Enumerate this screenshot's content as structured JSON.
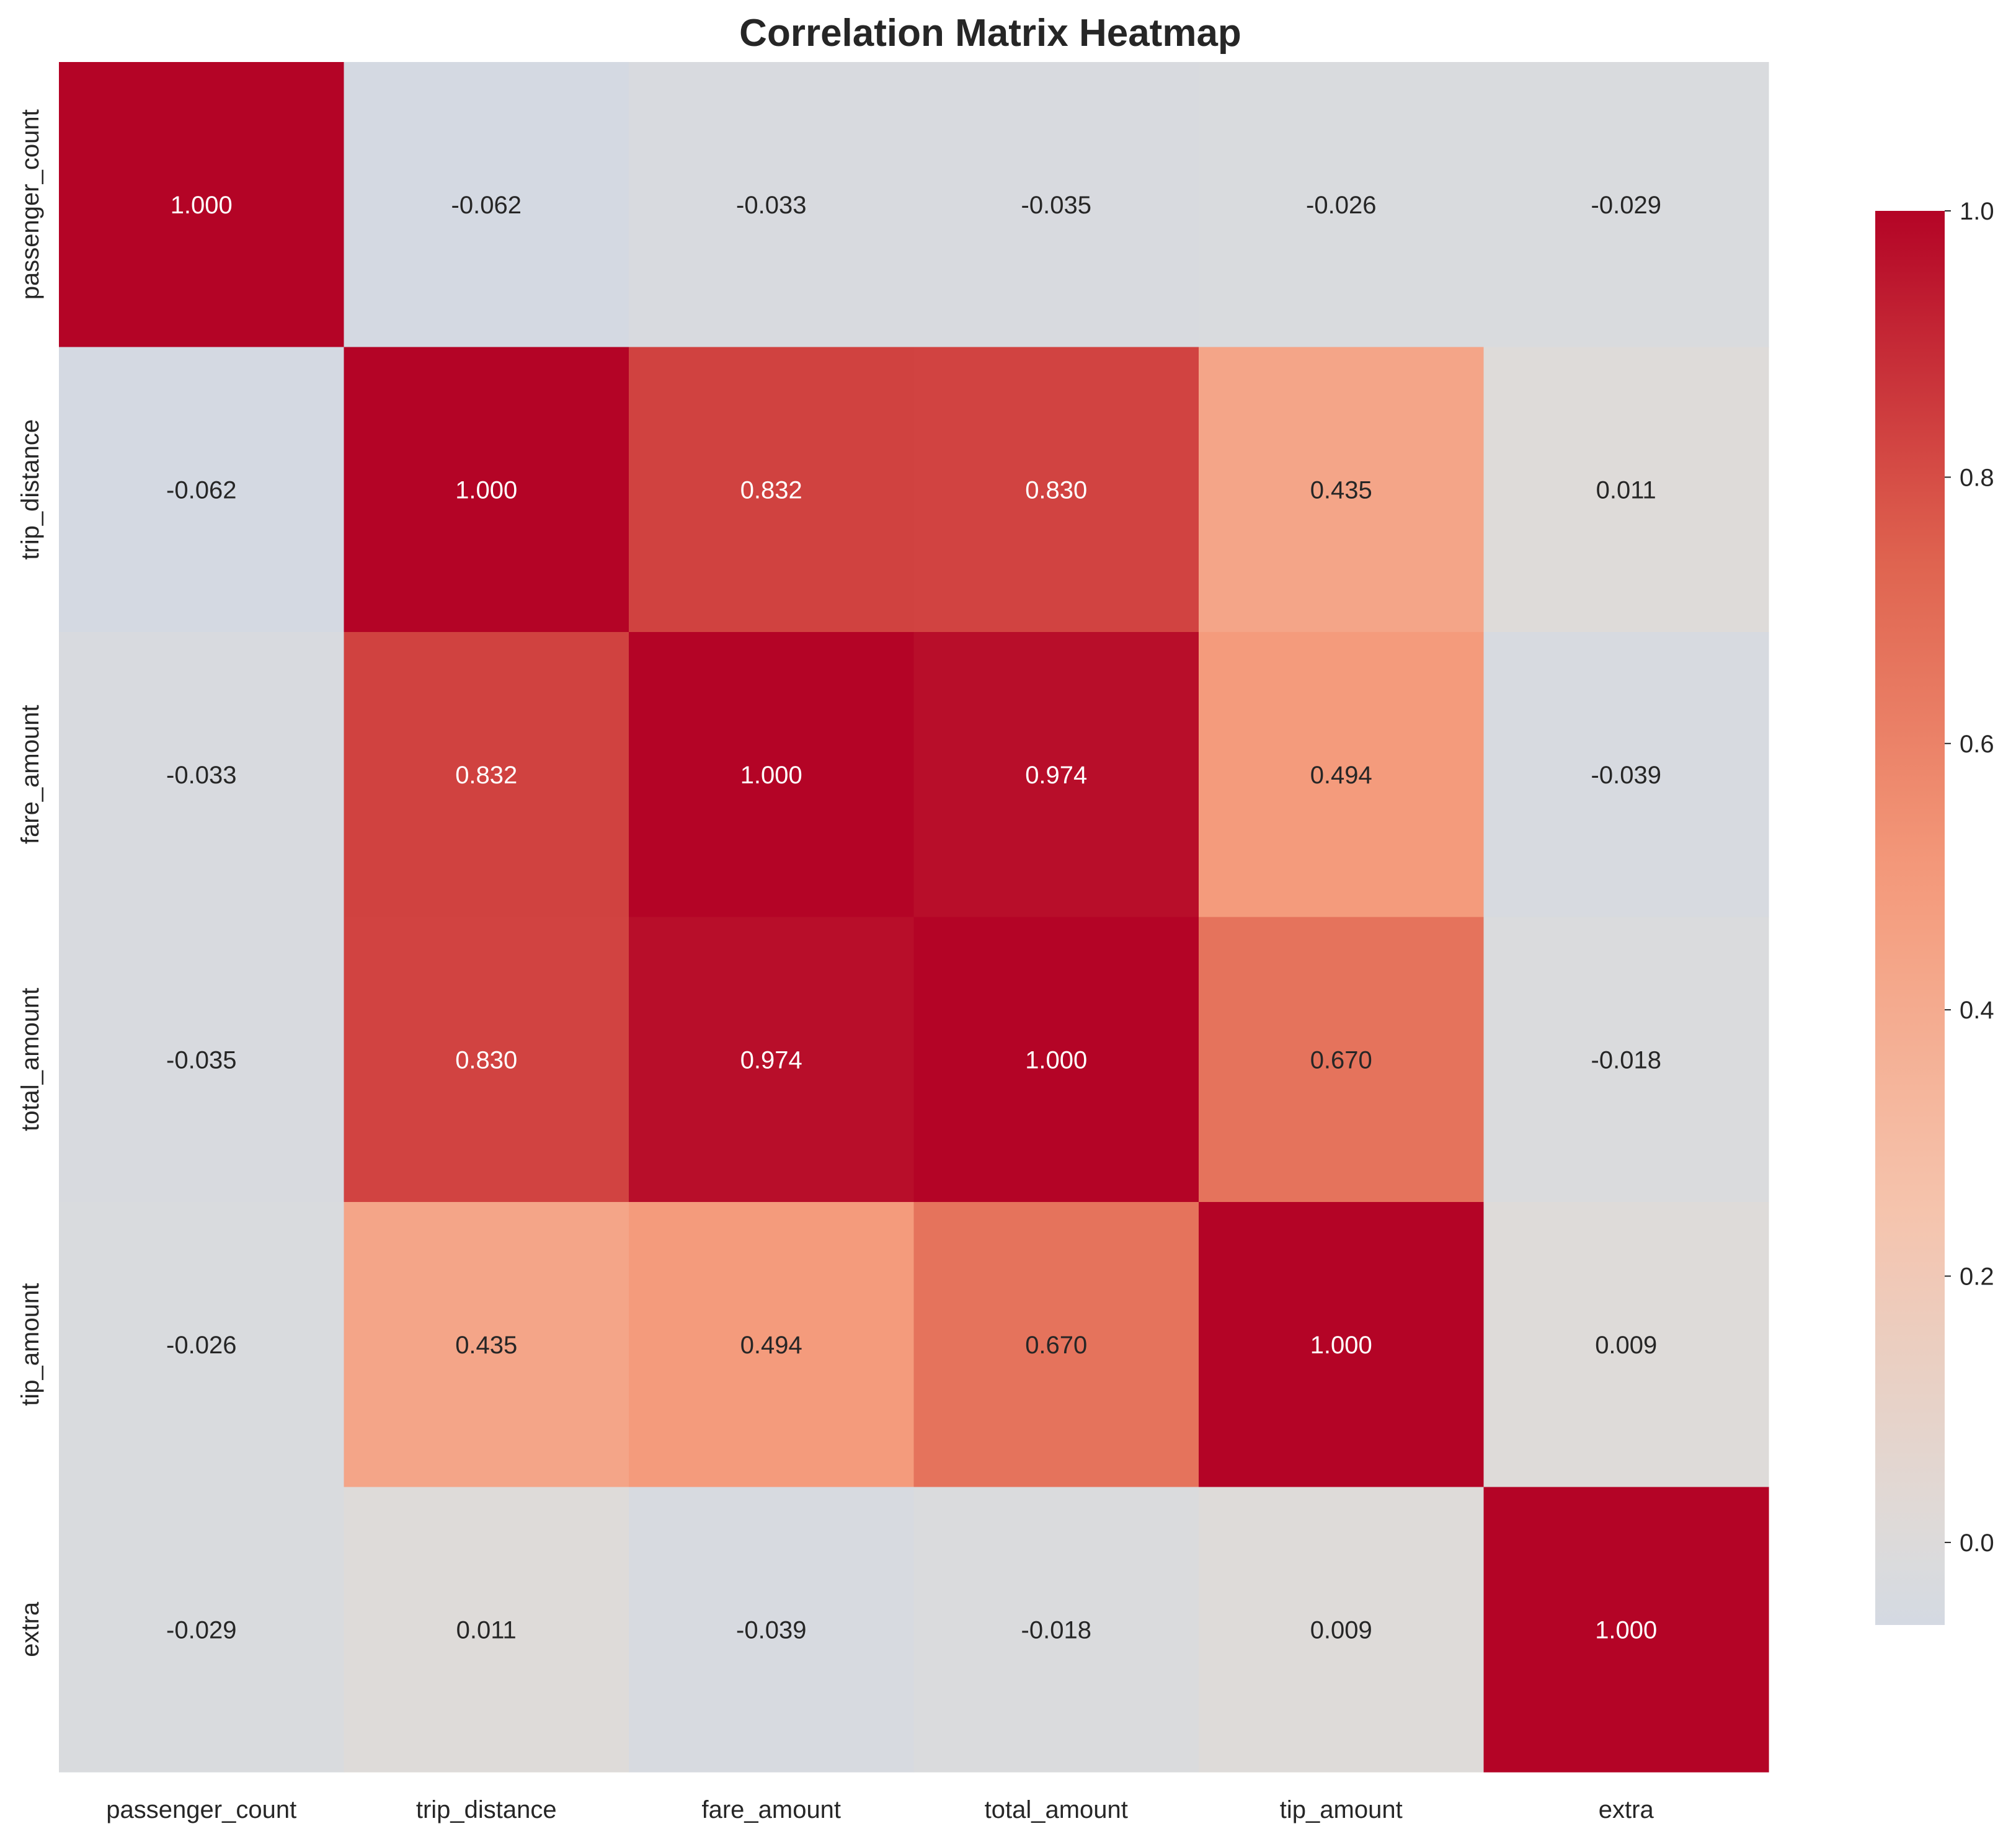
{
  "chart_data": {
    "type": "heatmap",
    "title": "Correlation Matrix Heatmap",
    "xlabel": "",
    "ylabel": "",
    "row_labels": [
      "passenger_count",
      "trip_distance",
      "fare_amount",
      "total_amount",
      "tip_amount",
      "extra"
    ],
    "col_labels": [
      "passenger_count",
      "trip_distance",
      "fare_amount",
      "total_amount",
      "tip_amount",
      "extra"
    ],
    "values": [
      [
        1.0,
        -0.062,
        -0.033,
        -0.035,
        -0.026,
        -0.029
      ],
      [
        -0.062,
        1.0,
        0.832,
        0.83,
        0.435,
        0.011
      ],
      [
        -0.033,
        0.832,
        1.0,
        0.974,
        0.494,
        -0.039
      ],
      [
        -0.035,
        0.83,
        0.974,
        1.0,
        0.67,
        -0.018
      ],
      [
        -0.026,
        0.435,
        0.494,
        0.67,
        1.0,
        0.009
      ],
      [
        -0.029,
        0.011,
        -0.039,
        -0.018,
        0.009,
        1.0
      ]
    ],
    "value_format": "3 decimals",
    "colorbar": {
      "colormap": "coolwarm",
      "vmin": -0.062,
      "vmax": 1.0,
      "center": 0.0,
      "ticks": [
        0.0,
        0.2,
        0.4,
        0.6,
        0.8,
        1.0
      ],
      "tick_labels": [
        "0.0",
        "0.2",
        "0.4",
        "0.6",
        "0.8",
        "1.0"
      ]
    },
    "colors": {
      "low": "#d5dbe4",
      "center": "#dddcdb",
      "high": "#b40426",
      "text_dark": "#262626",
      "text_light": "#ffffff"
    },
    "grid": false,
    "legend": "colorbar-right"
  }
}
